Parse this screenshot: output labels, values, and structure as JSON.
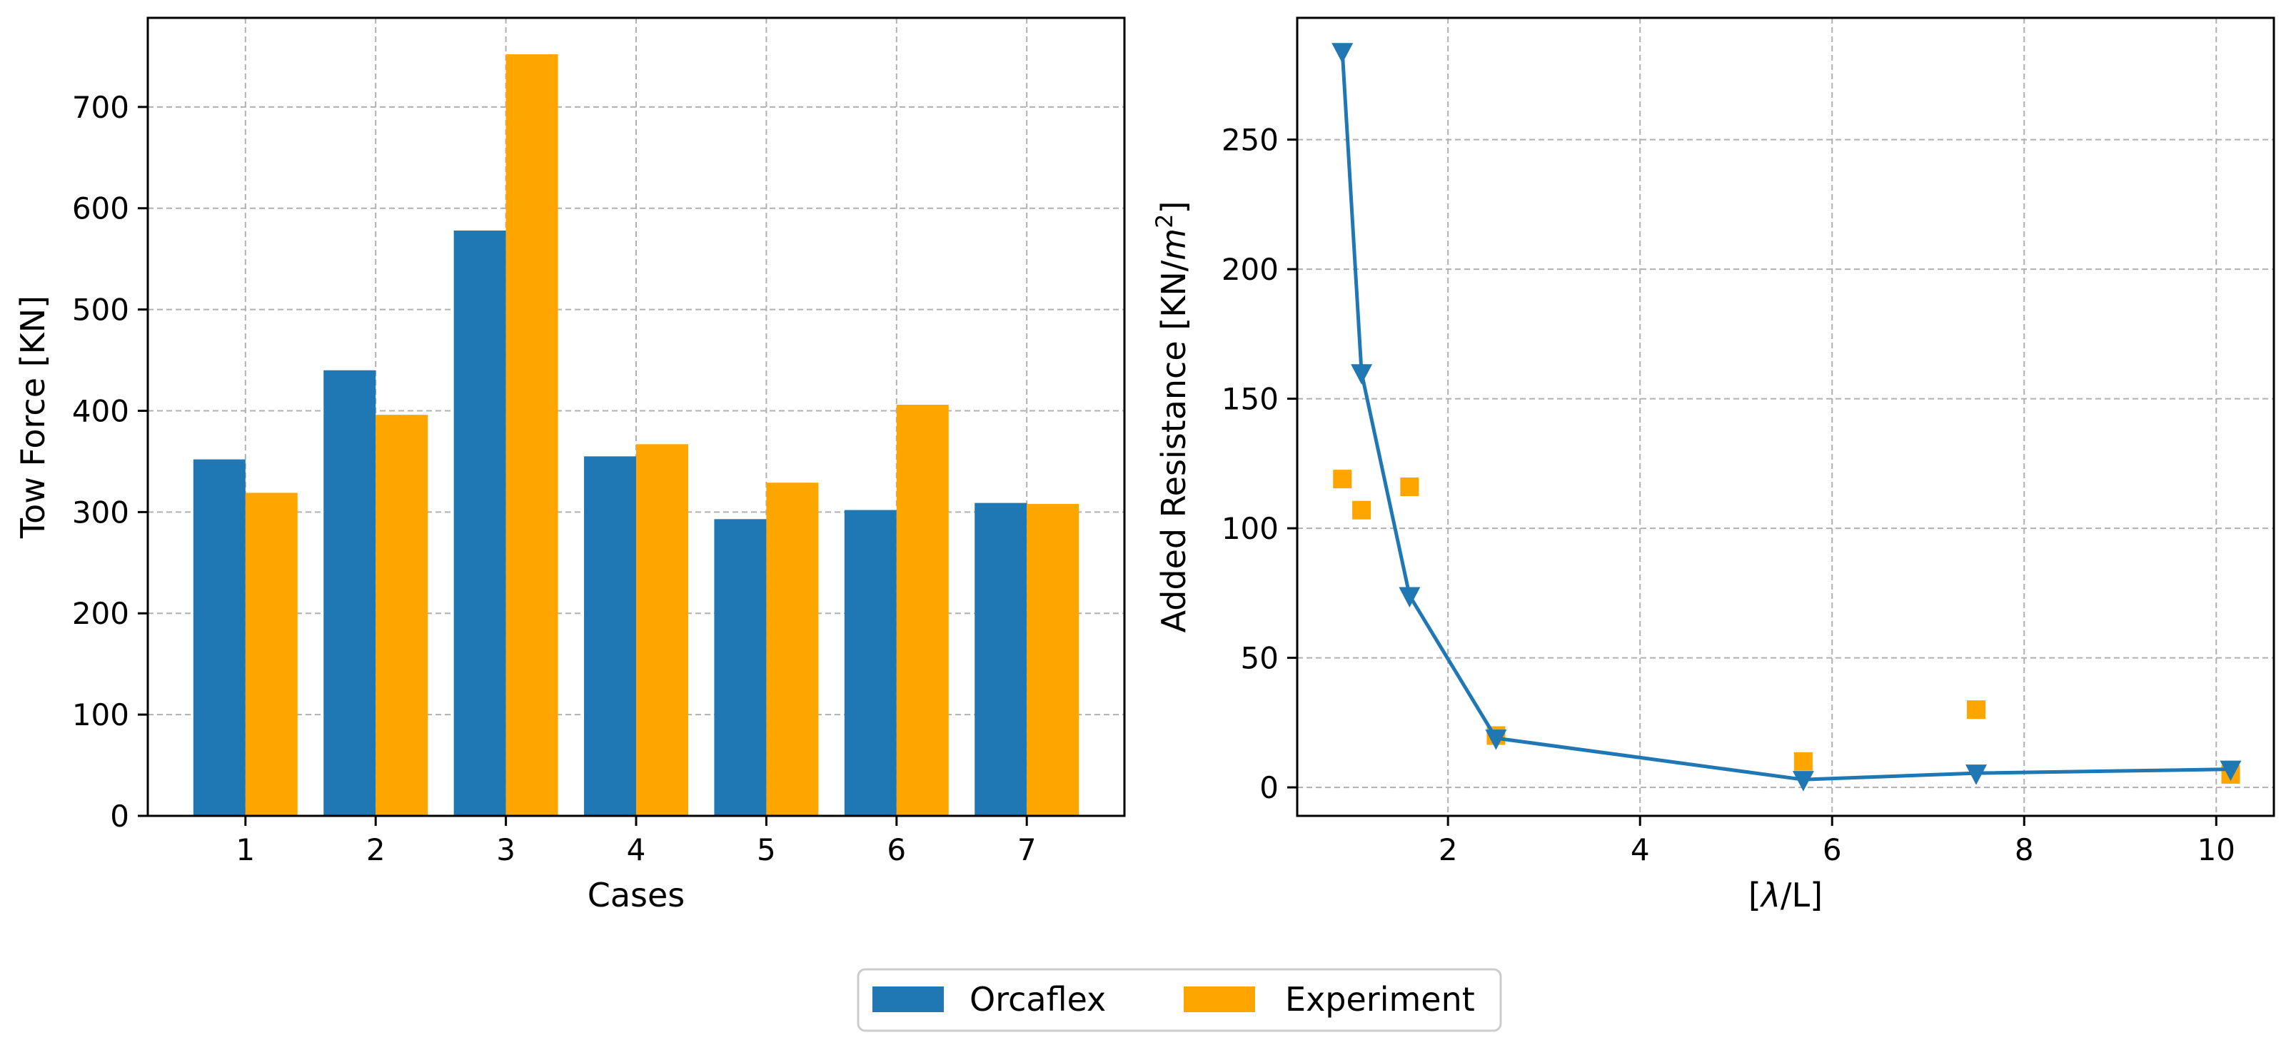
{
  "colors": {
    "orcaflex": "#1f77b4",
    "experiment": "#ffa500"
  },
  "legend": {
    "items": [
      "Orcaflex",
      "Experiment"
    ],
    "placement": "bottom-center"
  },
  "chart_data": [
    {
      "type": "bar",
      "title": "",
      "xlabel": "Cases",
      "ylabel": "Tow Force [KN]",
      "categories": [
        "1",
        "2",
        "3",
        "4",
        "5",
        "6",
        "7"
      ],
      "series": [
        {
          "name": "Orcaflex",
          "values": [
            352,
            440,
            578,
            355,
            293,
            302,
            309
          ]
        },
        {
          "name": "Experiment",
          "values": [
            319,
            396,
            752,
            367,
            329,
            406,
            308
          ]
        }
      ],
      "ylim": [
        0,
        788
      ],
      "yticks": [
        0,
        100,
        200,
        300,
        400,
        500,
        600,
        700
      ],
      "grid": true
    },
    {
      "type": "line",
      "title": "",
      "xlabel": "[λ/L]",
      "ylabel": "Added Resistance [KN/m²]",
      "ylabel_parts": {
        "prefix": "Added Resistance [KN/",
        "italic": "m",
        "sup": "2",
        "suffix": "]"
      },
      "xlabel_parts": {
        "prefix": "[",
        "italic": "λ",
        "suffix": "/L]"
      },
      "series": [
        {
          "name": "Orcaflex",
          "style": "line+triangle-down",
          "x": [
            0.9,
            1.1,
            1.6,
            2.5,
            5.7,
            7.5,
            10.15
          ],
          "y": [
            284,
            160,
            74,
            19,
            3,
            5.5,
            7
          ]
        },
        {
          "name": "Experiment",
          "style": "square-markers",
          "x": [
            0.9,
            1.1,
            1.6,
            2.5,
            5.7,
            7.5,
            10.15
          ],
          "y": [
            119,
            107,
            116,
            20,
            10,
            30,
            5
          ]
        }
      ],
      "xlim": [
        0.43,
        10.6
      ],
      "ylim": [
        -11,
        297
      ],
      "xticks": [
        2,
        4,
        6,
        8,
        10
      ],
      "yticks": [
        0,
        50,
        100,
        150,
        200,
        250
      ],
      "grid": true
    }
  ]
}
